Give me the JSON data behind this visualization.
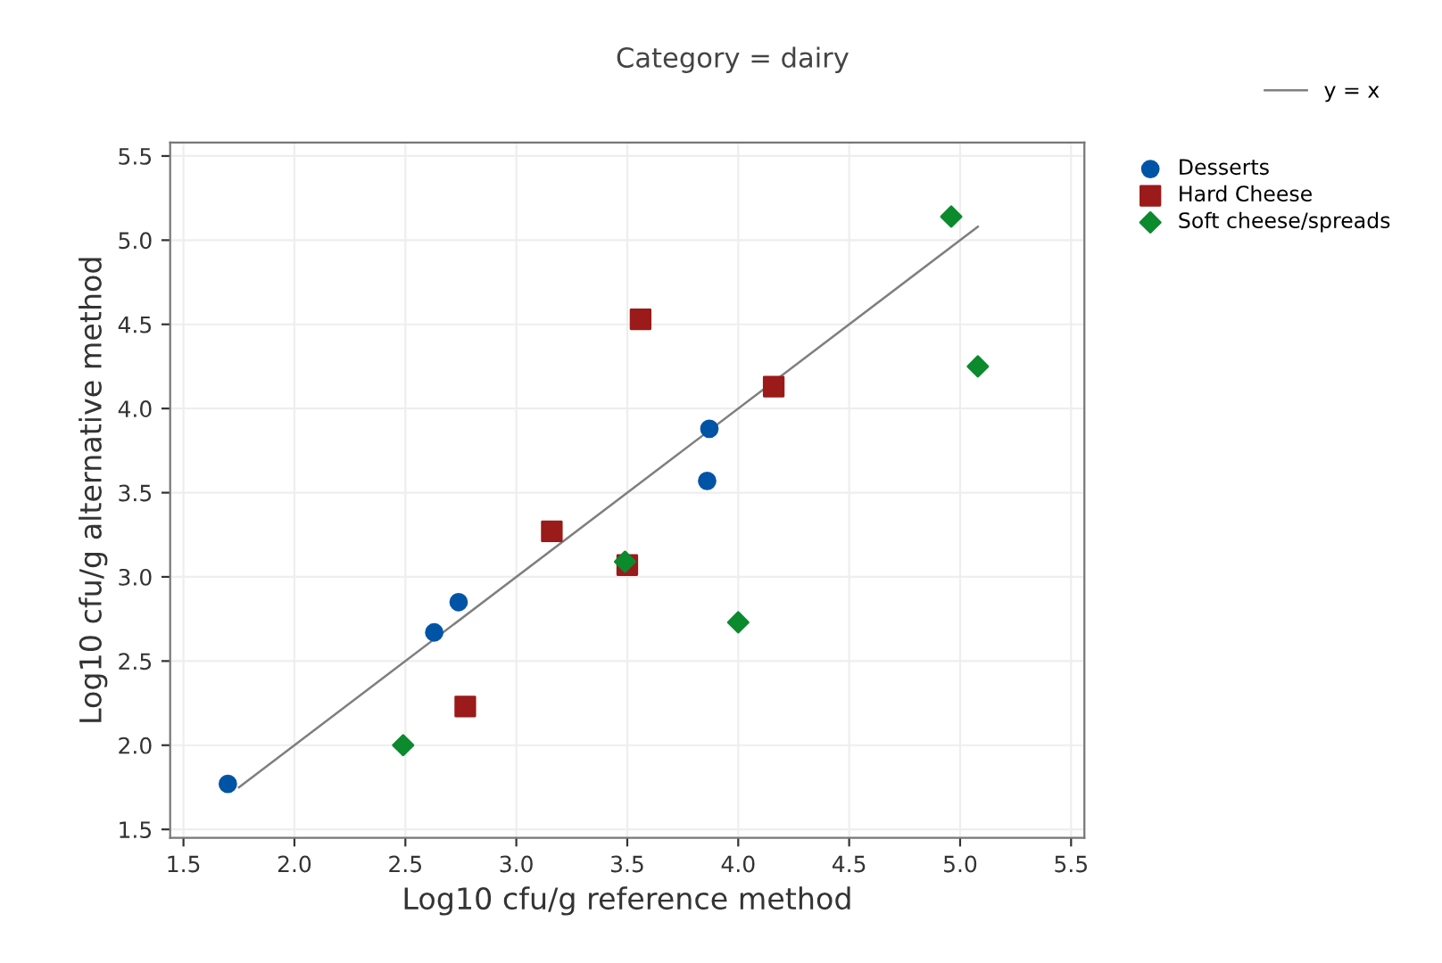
{
  "chart_data": {
    "type": "scatter",
    "title": "Category = dairy",
    "xlabel": "Log10 cfu/g reference method",
    "ylabel": "Log10 cfu/g alternative method",
    "xlim": [
      1.44,
      5.56
    ],
    "ylim": [
      1.45,
      5.58
    ],
    "xticks": [
      1.5,
      {
        "value": 2,
        "label": "2.0"
      },
      2.5,
      {
        "value": 3,
        "label": "3.0"
      },
      3.5,
      {
        "value": 4,
        "label": "4.0"
      },
      4.5,
      {
        "value": 5,
        "label": "5.0"
      },
      5.5
    ],
    "yticks": [
      1.5,
      {
        "value": 2,
        "label": "2.0"
      },
      2.5,
      {
        "value": 3,
        "label": "3.0"
      },
      3.5,
      {
        "value": 4,
        "label": "4.0"
      },
      4.5,
      {
        "value": 5,
        "label": "5.0"
      },
      5.5
    ],
    "grid": true,
    "legend": "top right",
    "series": [
      {
        "name": "y = x",
        "type": "line",
        "color": "#7f7f7f",
        "marker": "none",
        "line_style": "solid",
        "x": [
          1.75,
          5.08
        ],
        "values": [
          1.75,
          5.08
        ]
      },
      {
        "name": "Desserts",
        "color": "#0054a6",
        "marker": "circle",
        "x": [
          1.7,
          2.63,
          2.74,
          3.87,
          3.86
        ],
        "values": [
          1.77,
          2.67,
          2.85,
          3.88,
          3.57
        ]
      },
      {
        "name": "Hard Cheese",
        "color": "#9b1a1a",
        "marker": "square",
        "x": [
          2.77,
          3.16,
          3.5,
          3.56,
          4.16
        ],
        "values": [
          2.23,
          3.27,
          3.07,
          4.53,
          4.13
        ]
      },
      {
        "name": "Soft cheese/spreads",
        "color": "#0b8a2e",
        "marker": "diamond",
        "x": [
          2.49,
          3.49,
          4.0,
          4.96,
          5.08
        ],
        "values": [
          2.0,
          3.09,
          2.73,
          5.14,
          4.25
        ]
      }
    ]
  }
}
